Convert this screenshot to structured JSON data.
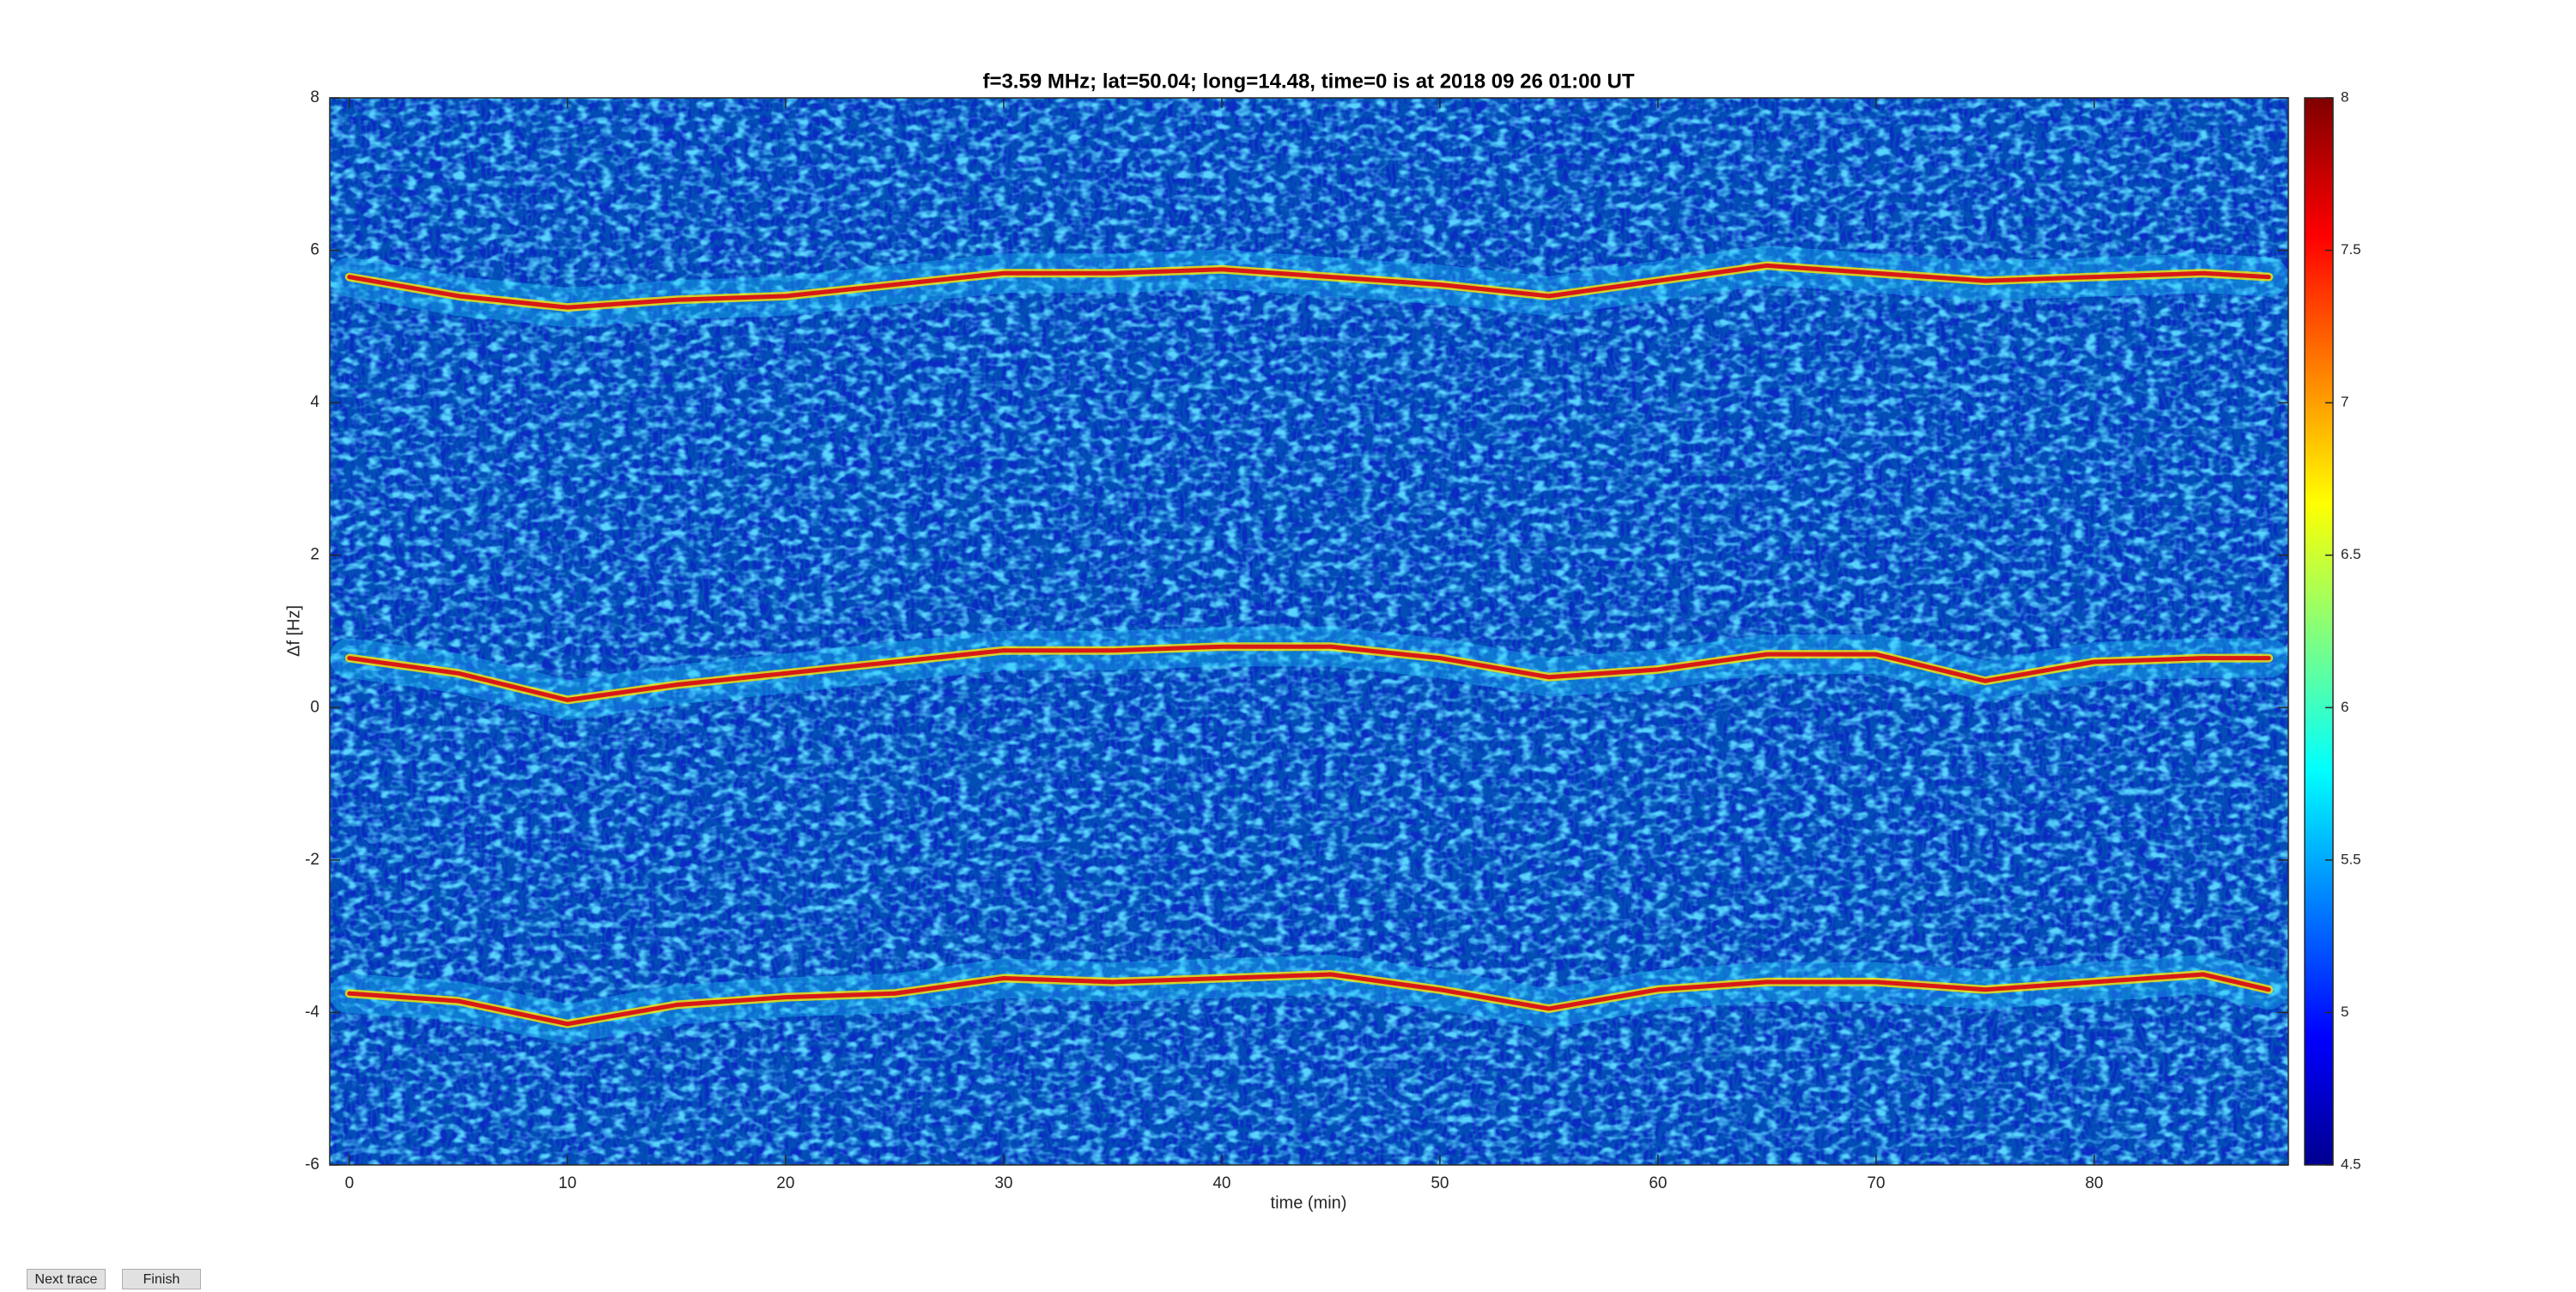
{
  "chart_data": {
    "type": "line",
    "title": "f=3.59 MHz;  lat=50.04; long=14.48, time=0 is at 2018 09 26 01:00 UT",
    "x_label": "time (min)",
    "y_label": "Δf [Hz]",
    "x": [
      0,
      5,
      10,
      15,
      20,
      25,
      30,
      35,
      40,
      45,
      50,
      55,
      60,
      65,
      70,
      75,
      80,
      85,
      88
    ],
    "series": [
      {
        "color": "#d81818",
        "values": [
          5.65,
          5.4,
          5.25,
          5.35,
          5.4,
          5.55,
          5.7,
          5.7,
          5.75,
          5.65,
          5.55,
          5.4,
          5.6,
          5.8,
          5.7,
          5.6,
          5.65,
          5.7,
          5.65
        ]
      },
      {
        "color": "#d81818",
        "values": [
          0.65,
          0.45,
          0.1,
          0.3,
          0.45,
          0.6,
          0.75,
          0.75,
          0.8,
          0.8,
          0.65,
          0.4,
          0.5,
          0.7,
          0.7,
          0.35,
          0.6,
          0.65,
          0.65
        ]
      },
      {
        "color": "#d81818",
        "values": [
          -3.75,
          -3.85,
          -4.15,
          -3.9,
          -3.8,
          -3.75,
          -3.55,
          -3.6,
          -3.55,
          -3.5,
          -3.7,
          -3.95,
          -3.7,
          -3.6,
          -3.6,
          -3.7,
          -3.6,
          -3.5,
          -3.7
        ]
      }
    ],
    "xlim": [
      -0.9,
      88.9
    ],
    "xticks": [
      0,
      10,
      20,
      30,
      40,
      50,
      60,
      70,
      80
    ],
    "ylim": [
      -6,
      8
    ],
    "yticks": [
      -6,
      -4,
      -2,
      0,
      2,
      4,
      6,
      8
    ],
    "colorbar": {
      "colormap": "jet",
      "clim": [
        4.5,
        8
      ],
      "ticks": [
        4.5,
        5,
        5.5,
        6,
        6.5,
        7,
        7.5,
        8
      ]
    }
  },
  "buttons": [
    "Next trace",
    "Finish"
  ]
}
